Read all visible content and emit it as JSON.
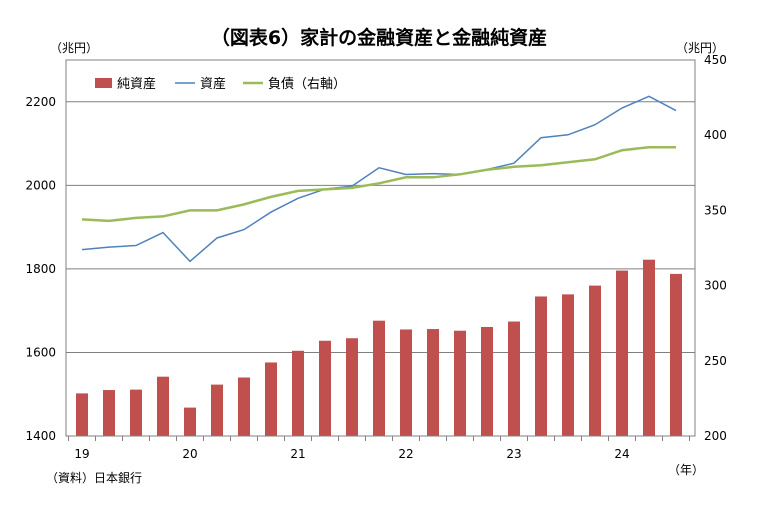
{
  "chart_data": {
    "type": "bar+line",
    "title": "（図表6）家計の金融資産と金融純資産",
    "left_unit": "（兆円）",
    "right_unit": "（兆円）",
    "x_unit": "（年）",
    "source": "（資料）日本銀行",
    "x_tick_labels": [
      "19",
      "20",
      "21",
      "22",
      "23",
      "24"
    ],
    "quarters": [
      "2019Q1",
      "2019Q2",
      "2019Q3",
      "2019Q4",
      "2020Q1",
      "2020Q2",
      "2020Q3",
      "2020Q4",
      "2021Q1",
      "2021Q2",
      "2021Q3",
      "2021Q4",
      "2022Q1",
      "2022Q2",
      "2022Q3",
      "2022Q4",
      "2023Q1",
      "2023Q2",
      "2023Q3",
      "2023Q4",
      "2024Q1",
      "2024Q2",
      "2024Q3"
    ],
    "left_axis": {
      "min": 1400,
      "max": 2300,
      "ticks": [
        1400,
        1600,
        1800,
        2000,
        2200
      ]
    },
    "right_axis": {
      "min": 200,
      "max": 450,
      "ticks": [
        200,
        250,
        300,
        350,
        400,
        450
      ]
    },
    "gridlines": true,
    "legend_position": "top-left",
    "series": [
      {
        "name": "純資産",
        "type": "bar",
        "axis": "right",
        "color": "#c0504d",
        "values": [
          1502,
          1510,
          1511,
          1542,
          1468,
          1523,
          1540,
          1576,
          1604,
          1628,
          1634,
          1676,
          1655,
          1656,
          1652,
          1661,
          1674,
          1734,
          1739,
          1760,
          1796,
          1822,
          1788
        ]
      },
      {
        "name": "資産",
        "type": "line",
        "axis": "left",
        "color": "#4f81bd",
        "values": [
          1846,
          1852,
          1856,
          1887,
          1818,
          1874,
          1894,
          1936,
          1969,
          1991,
          1998,
          2042,
          2026,
          2028,
          2026,
          2038,
          2053,
          2114,
          2121,
          2145,
          2185,
          2213,
          2179
        ]
      },
      {
        "name": "負債（右軸）",
        "type": "line",
        "axis": "right",
        "color": "#9bbb59",
        "values": [
          344,
          343,
          345,
          346,
          350,
          350,
          354,
          359,
          363,
          364,
          365,
          368,
          372,
          372,
          374,
          377,
          379,
          380,
          382,
          384,
          390,
          392,
          392
        ]
      }
    ]
  }
}
